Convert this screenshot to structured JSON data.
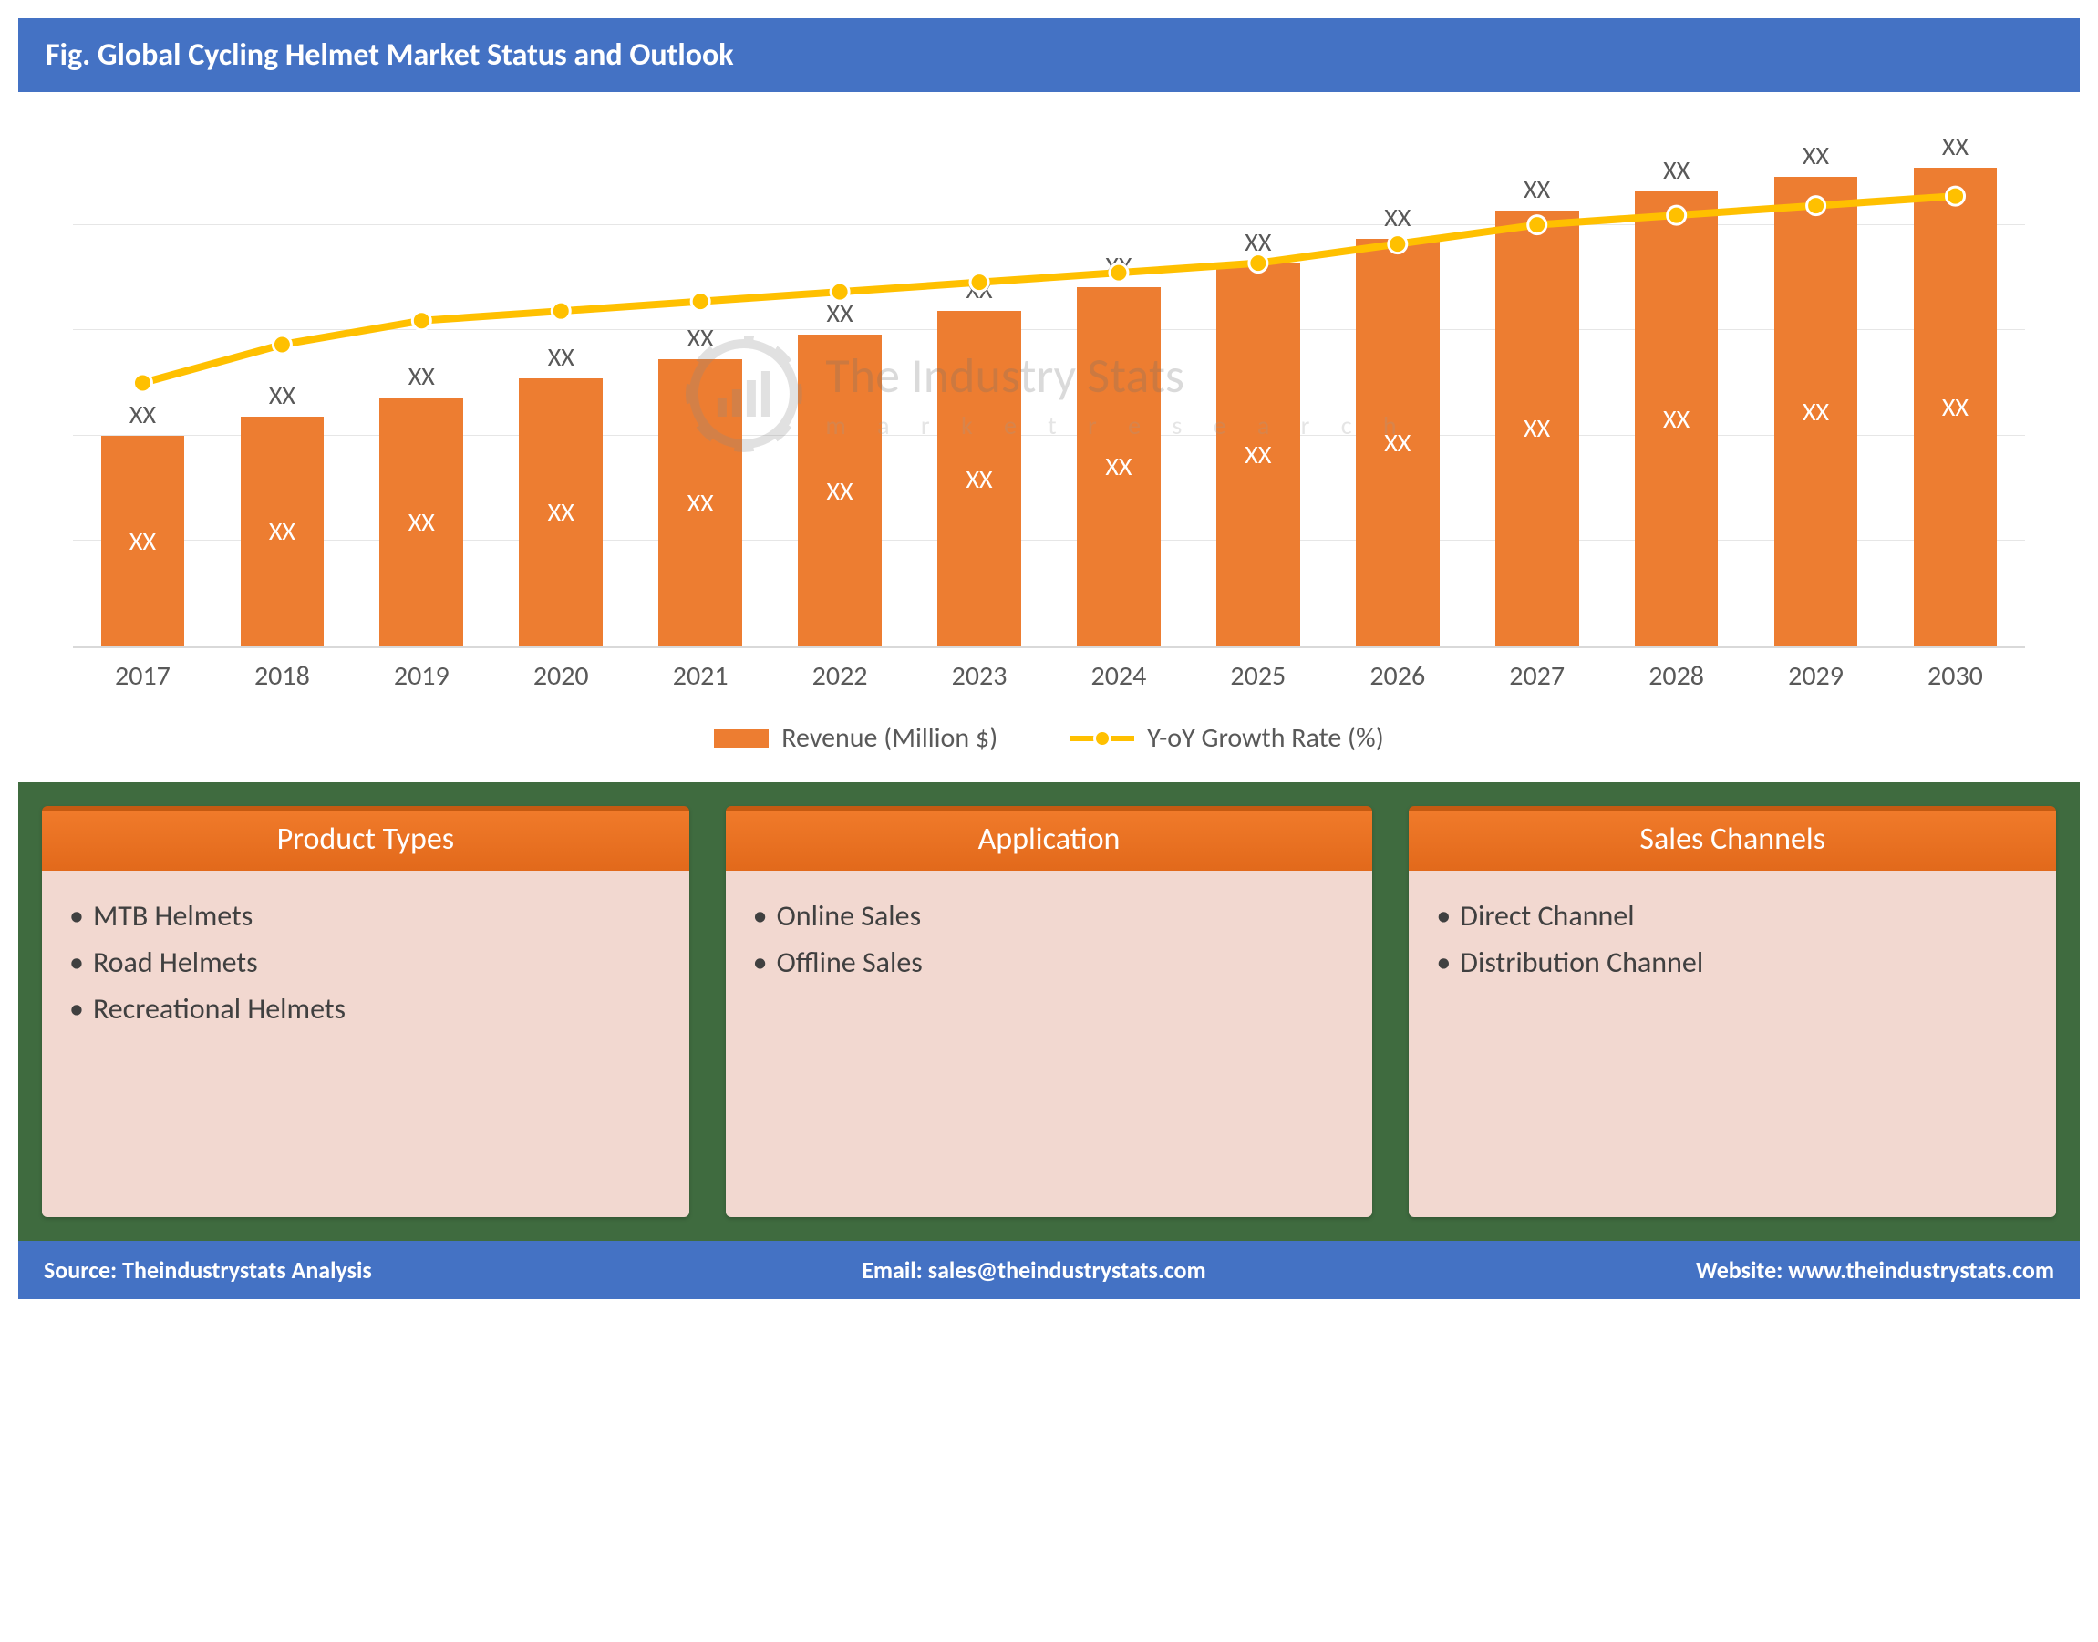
{
  "title": "Fig. Global Cycling Helmet Market Status and Outlook",
  "title_bg": "#4472c4",
  "title_color": "#ffffff",
  "chart": {
    "type": "bar+line",
    "categories": [
      "2017",
      "2018",
      "2019",
      "2020",
      "2021",
      "2022",
      "2023",
      "2024",
      "2025",
      "2026",
      "2027",
      "2028",
      "2029",
      "2030"
    ],
    "bar_values": [
      44,
      48,
      52,
      56,
      60,
      65,
      70,
      75,
      80,
      85,
      91,
      95,
      98,
      100
    ],
    "bar_top_labels": [
      "XX",
      "XX",
      "XX",
      "XX",
      "XX",
      "XX",
      "XX",
      "XX",
      "XX",
      "XX",
      "XX",
      "XX",
      "XX",
      "XX"
    ],
    "bar_inner_labels": [
      "XX",
      "XX",
      "XX",
      "XX",
      "XX",
      "XX",
      "XX",
      "XX",
      "XX",
      "XX",
      "XX",
      "XX",
      "XX",
      "XX"
    ],
    "bar_color": "#ed7d31",
    "bar_inner_label_color": "#ffffff",
    "line_values": [
      55,
      63,
      68,
      70,
      72,
      74,
      76,
      78,
      80,
      84,
      88,
      90,
      92,
      94
    ],
    "line_color": "#ffc000",
    "line_width": 8,
    "marker_radius": 10,
    "marker_fill": "#ffc000",
    "marker_stroke": "#ffffff",
    "grid_color": "#e6e6e6",
    "grid_lines": 5,
    "axis_label_color": "#595959",
    "axis_fontsize": 30,
    "data_label_fontsize": 28,
    "ylim": [
      0,
      110
    ],
    "background_color": "#ffffff"
  },
  "legend": {
    "bar_label": "Revenue (Million $)",
    "line_label": "Y-oY Growth Rate (%)",
    "fontsize": 30,
    "text_color": "#595959"
  },
  "watermark": {
    "line1": "The Industry Stats",
    "line2": "m a r k e t   r e s e a r c h",
    "color": "#8a8a8a"
  },
  "panels_bg": "#3f6b3f",
  "panel_header_bg": "#ed7d31",
  "panel_header_border": "#c55a11",
  "panel_body_bg": "#f2d8d0",
  "panel_text_color": "#404040",
  "panels": [
    {
      "title": "Product Types",
      "items": [
        "MTB Helmets",
        "Road Helmets",
        "Recreational Helmets"
      ]
    },
    {
      "title": "Application",
      "items": [
        "Online Sales",
        "Offline Sales"
      ]
    },
    {
      "title": "Sales Channels",
      "items": [
        "Direct Channel",
        "Distribution Channel"
      ]
    }
  ],
  "footer": {
    "bg": "#4472c4",
    "color": "#ffffff",
    "source": "Source: Theindustrystats Analysis",
    "email": "Email: sales@theindustrystats.com",
    "website": "Website: www.theindustrystats.com"
  }
}
